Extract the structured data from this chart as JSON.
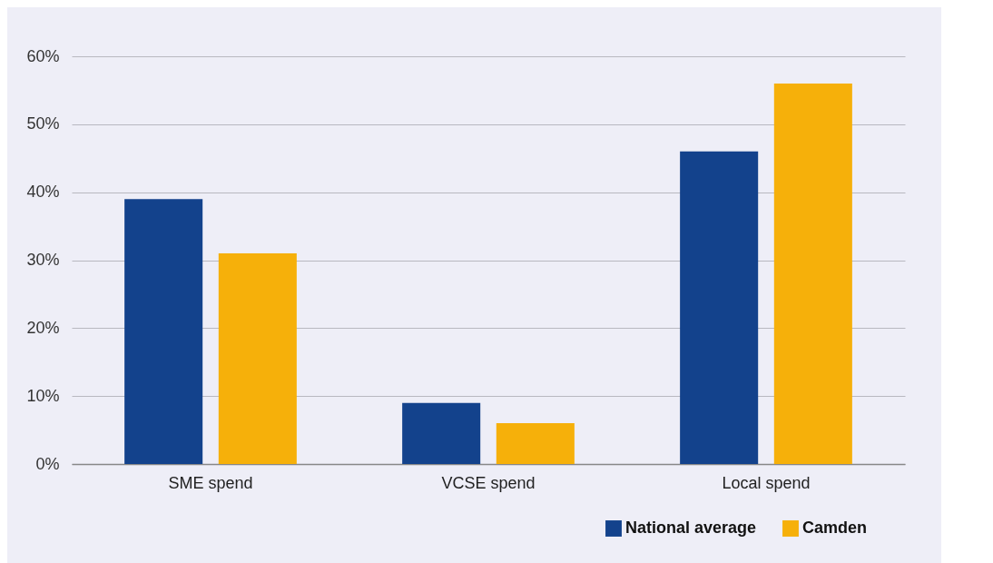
{
  "chart_data": {
    "type": "bar",
    "categories": [
      "SME spend",
      "VCSE spend",
      "Local spend"
    ],
    "series": [
      {
        "name": "National average",
        "color": "#13428c",
        "values": [
          39,
          9,
          46
        ]
      },
      {
        "name": "Camden",
        "color": "#f6b00a",
        "values": [
          31,
          6,
          56
        ]
      }
    ],
    "ylim": [
      0,
      60
    ],
    "yticks": [
      {
        "value": 0,
        "label": "0%"
      },
      {
        "value": 10,
        "label": "10%"
      },
      {
        "value": 20,
        "label": "20%"
      },
      {
        "value": 30,
        "label": "30%"
      },
      {
        "value": 40,
        "label": "40%"
      },
      {
        "value": 50,
        "label": "50%"
      },
      {
        "value": 60,
        "label": "60%"
      }
    ],
    "grid": "y",
    "legend": "bottom right"
  }
}
